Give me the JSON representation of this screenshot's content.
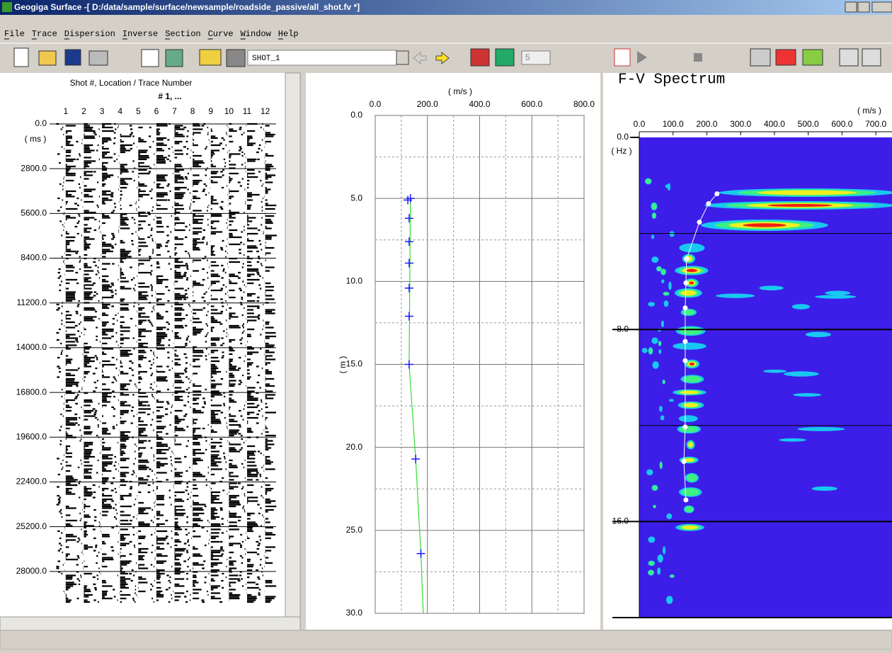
{
  "window": {
    "title": "Geogiga Surface -[ D:/data/sample/surface/newsample/roadside_passive/all_shot.fv *]"
  },
  "menu": [
    "File",
    "Trace",
    "Dispersion",
    "Inverse",
    "Section",
    "Curve",
    "Window",
    "Help"
  ],
  "toolbar": {
    "shot": "SHOT_1",
    "spin": "5"
  },
  "traces_panel": {
    "title": "Shot #, Location / Trace Number",
    "subtitle": "# 1, ...",
    "xlim": [
      0.5,
      12.6
    ],
    "xticks": [
      1,
      2,
      3,
      4,
      5,
      6,
      7,
      8,
      9,
      10,
      11,
      12
    ],
    "y_unit": "( ms )",
    "ylim": [
      0,
      30000
    ],
    "yticks": [
      {
        "value": 0,
        "label": "0.0"
      },
      {
        "value": 2800,
        "label": "2800.0"
      },
      {
        "value": 5600,
        "label": "5600.0"
      },
      {
        "value": 8400,
        "label": "8400.0"
      },
      {
        "value": 11200,
        "label": "11200.0"
      },
      {
        "value": 14000,
        "label": "14000.0"
      },
      {
        "value": 16800,
        "label": "16800.0"
      },
      {
        "value": 19600,
        "label": "19600.0"
      },
      {
        "value": 22400,
        "label": "22400.0"
      },
      {
        "value": 25200,
        "label": "25200.0"
      },
      {
        "value": 28000,
        "label": "28000.0"
      }
    ]
  },
  "velocity_panel": {
    "x_unit": "( m/s )",
    "y_unit": "( m )",
    "xlim": [
      0,
      800
    ],
    "xticks": [
      {
        "value": 0,
        "label": "0.0"
      },
      {
        "value": 200,
        "label": "200.0"
      },
      {
        "value": 400,
        "label": "400.0"
      },
      {
        "value": 600,
        "label": "600.0"
      },
      {
        "value": 800,
        "label": "800.0"
      }
    ],
    "ylim": [
      0,
      30
    ],
    "yticks": [
      {
        "value": 0,
        "label": "0.0"
      },
      {
        "value": 5,
        "label": "5.0"
      },
      {
        "value": 10,
        "label": "10.0"
      },
      {
        "value": 15,
        "label": "15.0"
      },
      {
        "value": 20,
        "label": "20.0"
      },
      {
        "value": 25,
        "label": "25.0"
      },
      {
        "value": 30,
        "label": "30.0"
      }
    ],
    "model": {
      "color": "#33dd33",
      "velocity": [
        135,
        130,
        155,
        175,
        184
      ],
      "depth": [
        4.9,
        15.0,
        20.7,
        26.4,
        30.0
      ]
    },
    "picks": {
      "color": "#1a1aff",
      "velocity": [
        135,
        125,
        130,
        130,
        130,
        130,
        130,
        130,
        155,
        175
      ],
      "depth": [
        5.0,
        5.1,
        6.2,
        7.6,
        8.9,
        10.4,
        12.1,
        15.0,
        20.7,
        26.4
      ]
    }
  },
  "spectrum_panel": {
    "title": "F-V Spectrum",
    "x_unit": "( m/s )",
    "y_unit": "( Hz )",
    "xlim": [
      0,
      750
    ],
    "xticks": [
      {
        "value": 0,
        "label": "0.0"
      },
      {
        "value": 100,
        "label": "100.0"
      },
      {
        "value": 200,
        "label": "200.0"
      },
      {
        "value": 300,
        "label": "300.0"
      },
      {
        "value": 400,
        "label": "400.0"
      },
      {
        "value": 500,
        "label": "500.0"
      },
      {
        "value": 600,
        "label": "600.0"
      },
      {
        "value": 700,
        "label": "700.0"
      }
    ],
    "ylim": [
      0,
      20
    ],
    "yticks": [
      {
        "value": 0,
        "label": "0.0"
      },
      {
        "value": 8,
        "label": "8.0"
      },
      {
        "value": 16,
        "label": "16.0"
      }
    ],
    "curve": {
      "color": "#ffffff",
      "velocity": [
        230,
        205,
        178,
        140,
        138,
        136,
        136,
        136,
        136,
        132,
        138
      ],
      "frequency": [
        2.35,
        2.76,
        3.53,
        5.06,
        6.06,
        7.1,
        8.5,
        9.3,
        12.06,
        13.5,
        15.1
      ]
    }
  }
}
